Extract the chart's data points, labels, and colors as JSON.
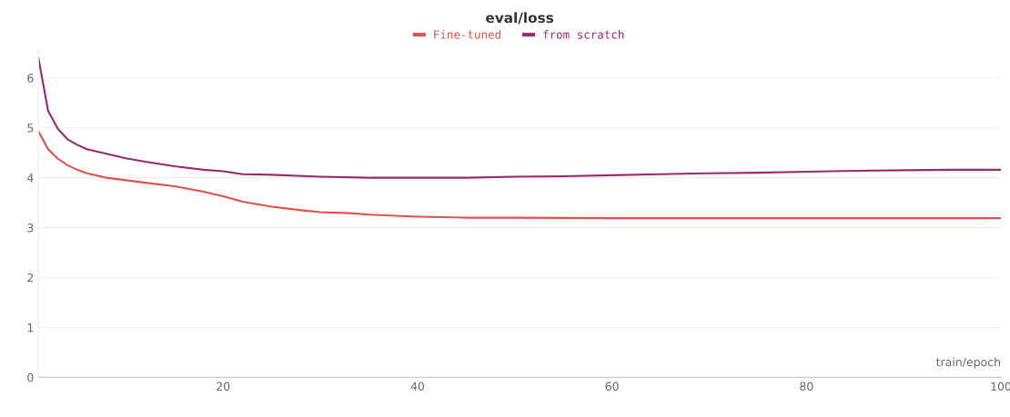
{
  "chart_data": {
    "type": "line",
    "title": "eval/loss",
    "xlabel": "train/epoch",
    "series": [
      {
        "name": "Fine-tuned",
        "color": "#e0524a",
        "x": [
          1,
          2,
          3,
          4,
          5,
          6,
          8,
          10,
          12,
          15,
          18,
          20,
          22,
          25,
          28,
          30,
          33,
          35,
          40,
          45,
          50,
          60,
          70,
          80,
          90,
          100
        ],
        "values": [
          4.93,
          4.57,
          4.38,
          4.25,
          4.16,
          4.09,
          4.0,
          3.95,
          3.9,
          3.83,
          3.72,
          3.63,
          3.52,
          3.42,
          3.35,
          3.31,
          3.29,
          3.26,
          3.22,
          3.2,
          3.2,
          3.19,
          3.19,
          3.19,
          3.19,
          3.19
        ]
      },
      {
        "name": "from scratch",
        "color": "#9b2a6a",
        "x": [
          1,
          2,
          3,
          4,
          5,
          6,
          8,
          10,
          12,
          15,
          18,
          20,
          22,
          25,
          30,
          35,
          40,
          45,
          50,
          55,
          60,
          65,
          70,
          75,
          80,
          85,
          90,
          95,
          100
        ],
        "values": [
          6.4,
          5.34,
          4.98,
          4.77,
          4.66,
          4.57,
          4.48,
          4.39,
          4.32,
          4.23,
          4.16,
          4.13,
          4.07,
          4.06,
          4.02,
          4.0,
          4.0,
          4.0,
          4.02,
          4.03,
          4.05,
          4.07,
          4.09,
          4.1,
          4.12,
          4.14,
          4.15,
          4.16,
          4.16
        ]
      }
    ],
    "xlim": [
      1,
      100
    ],
    "xticks": [
      20,
      40,
      60,
      80,
      100
    ],
    "ylim": [
      0,
      6.6
    ],
    "yticks": [
      0,
      1,
      2,
      3,
      4,
      5,
      6
    ],
    "grid": "y",
    "legend": "top"
  }
}
